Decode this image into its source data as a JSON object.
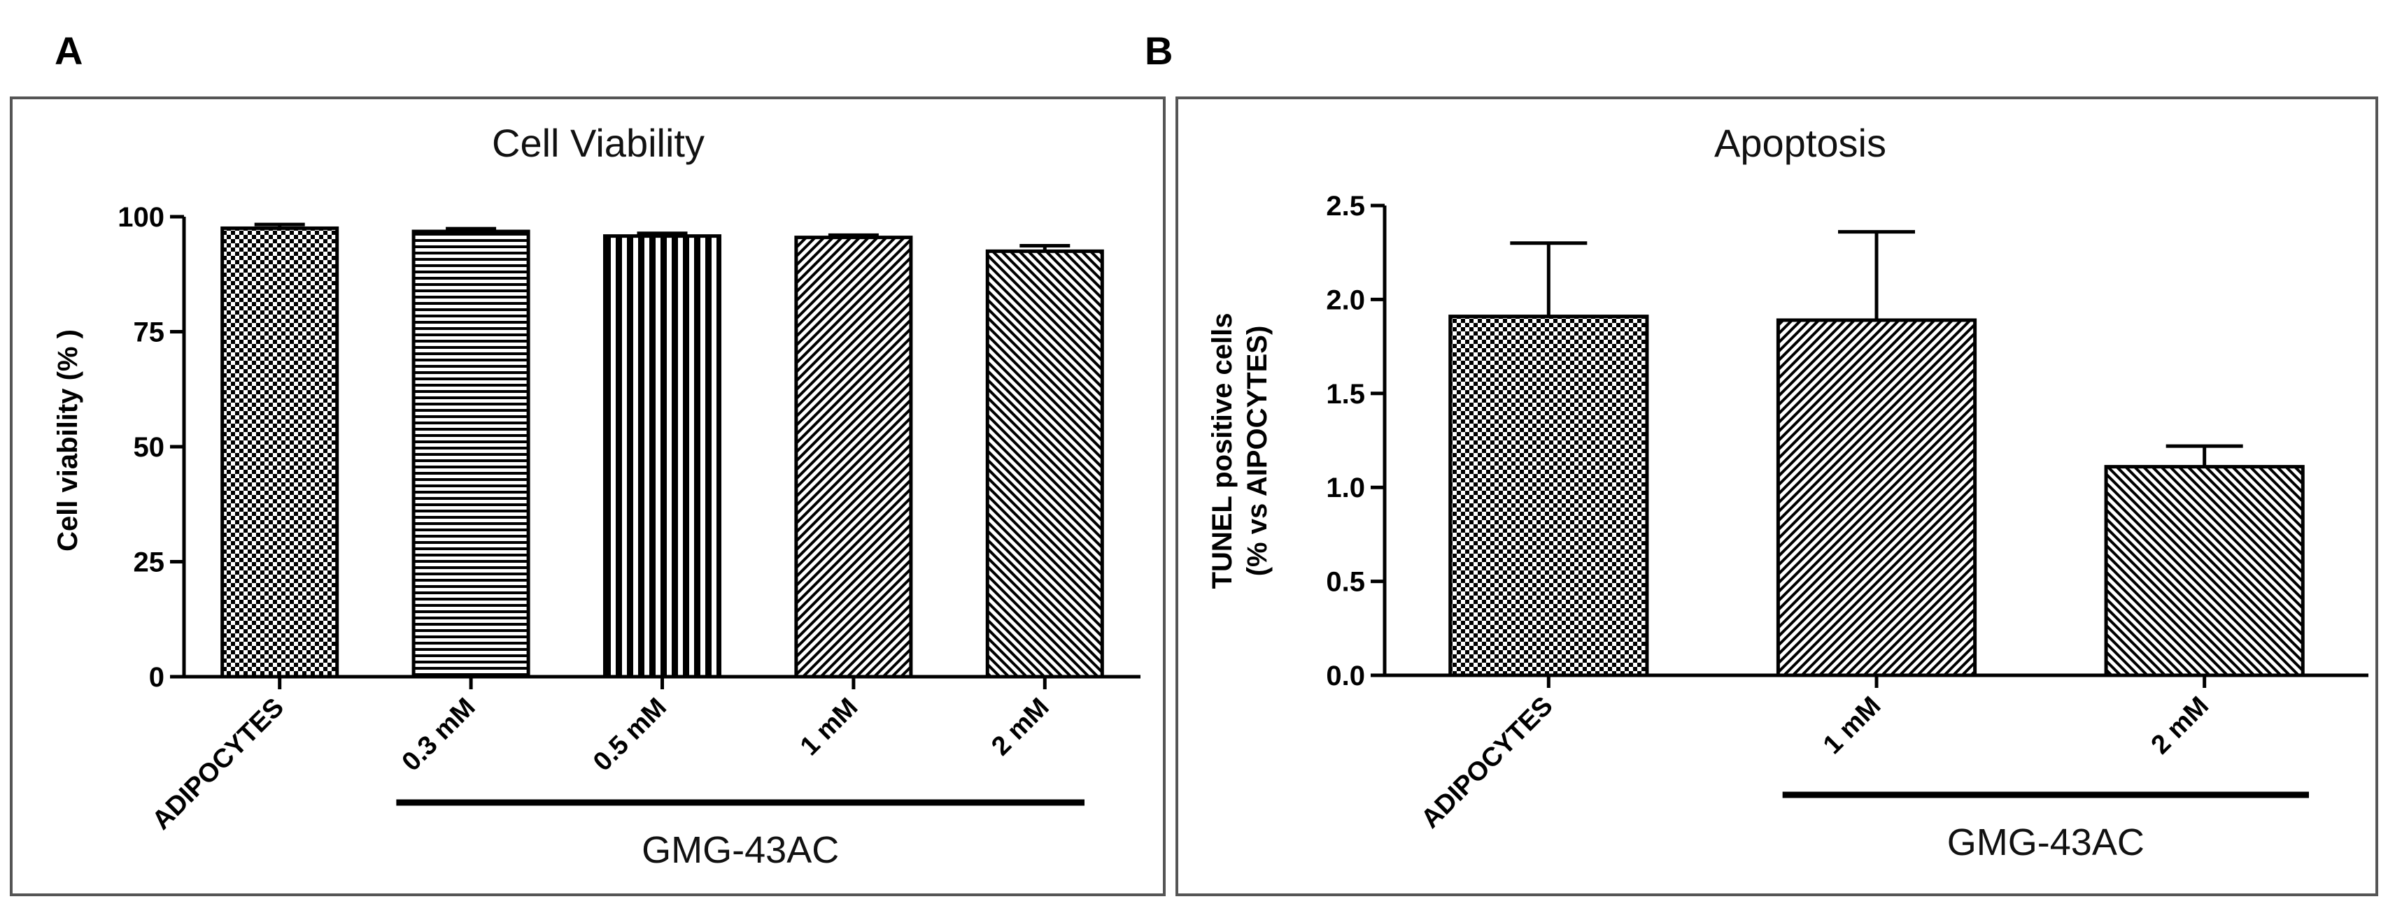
{
  "chart_data": [
    {
      "type": "bar",
      "panel": "A",
      "title": "Cell Viability",
      "xlabel": "",
      "ylabel": "Cell viability (% )",
      "ylim": [
        0,
        100
      ],
      "yticks": [
        "0",
        "25",
        "50",
        "75",
        "100"
      ],
      "categories": [
        "ADIPOCYTES",
        "0.3 mM",
        "0.5 mM",
        "1 mM",
        "2 mM"
      ],
      "values": [
        97.5,
        96.8,
        95.8,
        95.5,
        92.5
      ],
      "errors": [
        0.8,
        0.6,
        0.6,
        0.5,
        1.2
      ],
      "patterns": [
        "checker",
        "hlines",
        "vlines",
        "diag",
        "diag2"
      ],
      "group_label": "GMG-43AC",
      "group_start": 1,
      "group_end": 4,
      "grid": false
    },
    {
      "type": "bar",
      "panel": "B",
      "title": "Apoptosis",
      "xlabel": "",
      "ylabel": "TUNEL positive cells",
      "ylabel2": "(% vs AIPOCYTES)",
      "ylim": [
        0,
        2.5
      ],
      "yticks": [
        "0.0",
        "0.5",
        "1.0",
        "1.5",
        "2.0",
        "2.5"
      ],
      "categories": [
        "ADIPOCYTES",
        "1 mM",
        "2 mM"
      ],
      "values": [
        1.91,
        1.89,
        1.11
      ],
      "errors": [
        0.39,
        0.47,
        0.11
      ],
      "patterns": [
        "checker",
        "diag",
        "diag2"
      ],
      "group_label": "GMG-43AC",
      "group_start": 1,
      "group_end": 2,
      "grid": false
    }
  ]
}
